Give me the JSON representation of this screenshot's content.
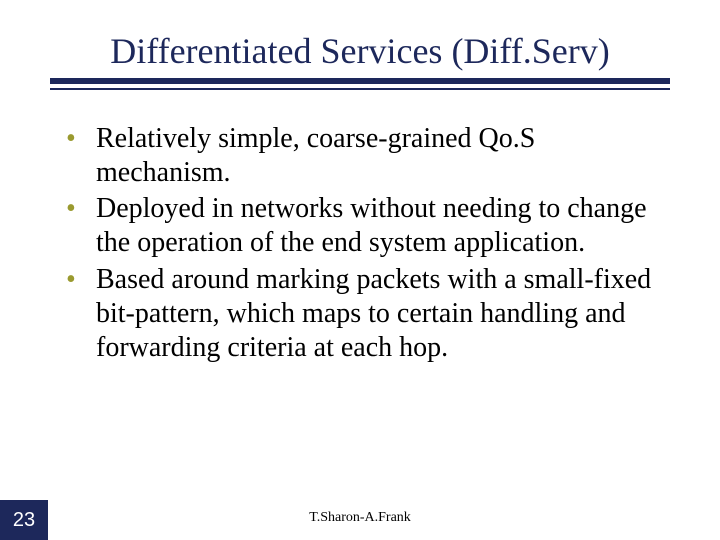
{
  "slide": {
    "title": "Differentiated Services (Diff.Serv)",
    "title_color": "#1d285b",
    "title_fontsize": 36,
    "underline_color": "#1d285b",
    "bullets": [
      "Relatively simple, coarse-grained Qo.S mechanism.",
      "Deployed in networks without needing to change the operation of the end system application.",
      "Based around marking packets with a small-fixed bit-pattern, which maps to certain handling and forwarding criteria at each hop."
    ],
    "bullet_marker_color": "#9a9a2f",
    "body_fontsize": 28,
    "body_color": "#000000",
    "background_color": "#ffffff"
  },
  "footer": {
    "page_number": "23",
    "page_number_bg": "#1d285b",
    "page_number_color": "#ffffff",
    "author": "T.Sharon-A.Frank",
    "author_fontsize": 14
  }
}
